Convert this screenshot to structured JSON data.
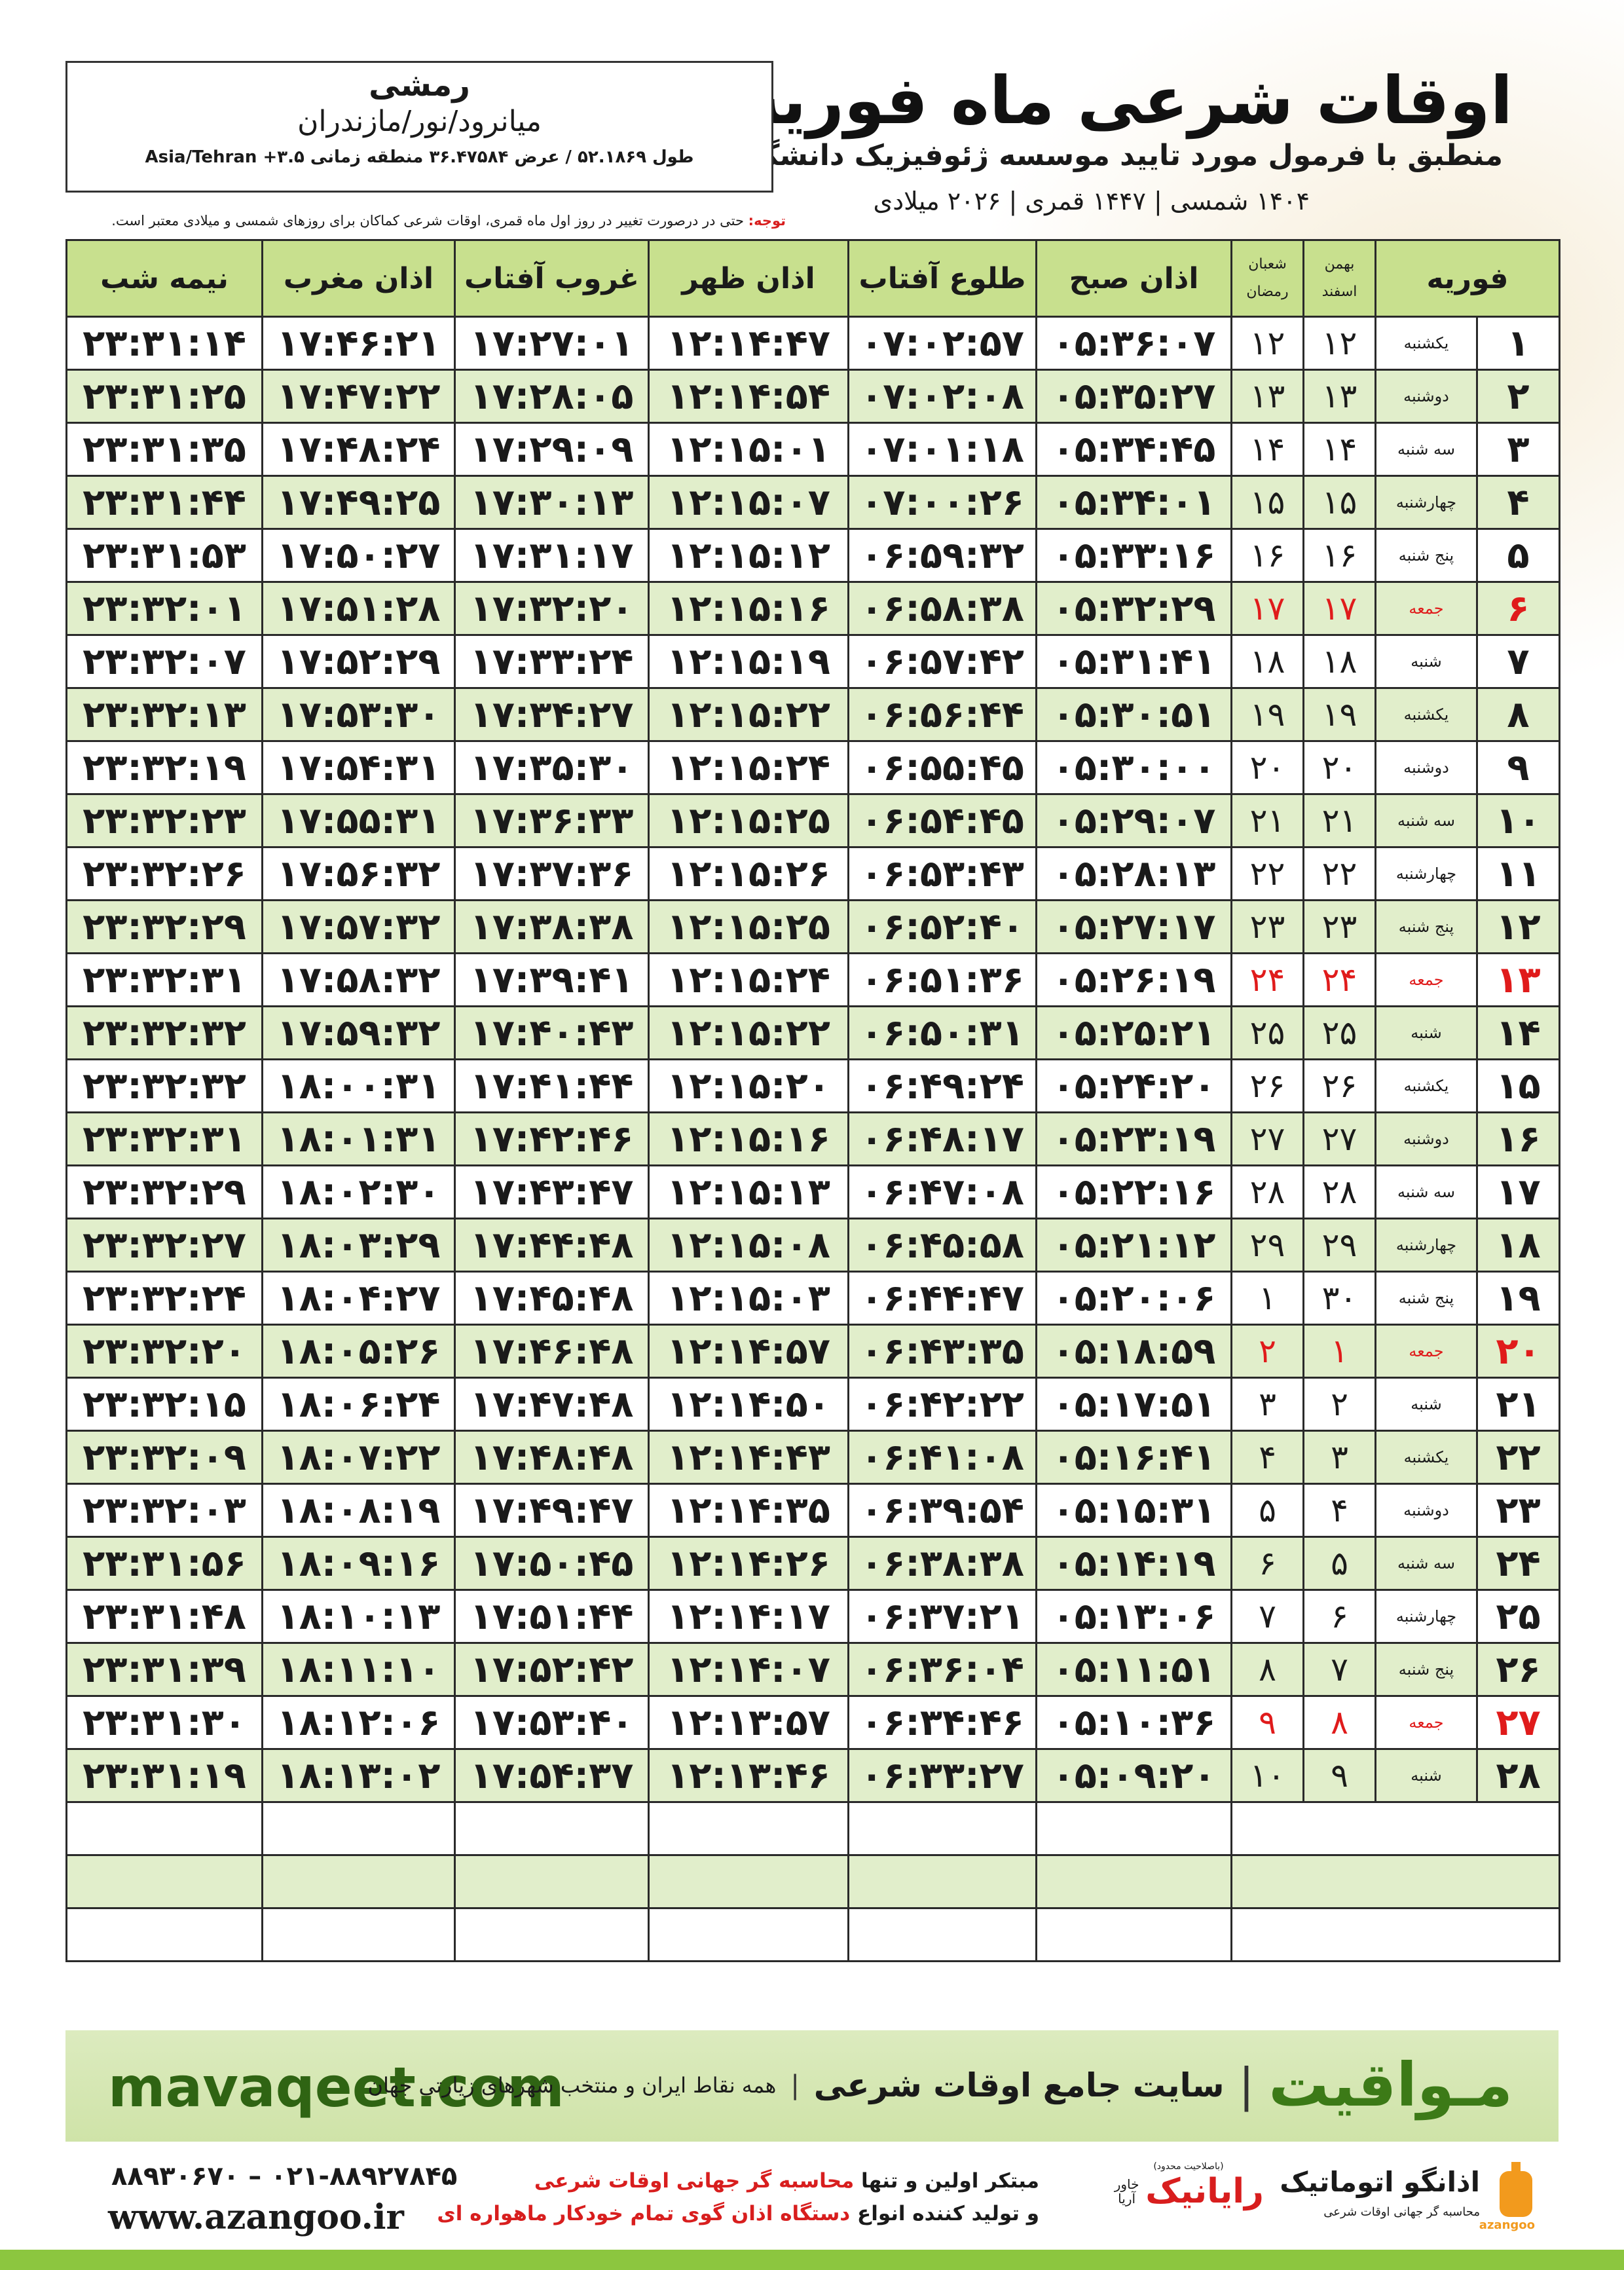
{
  "header": {
    "title": "اوقات شرعی ماه فوریه",
    "subtitle": "منطبق با فرمول مورد تایید موسسه ژئوفیزیک دانشگاه تهران",
    "dates": "۱۴۰۴ شمسی | ۱۴۴۷ قمری | ۲۰۲۶ میلادی"
  },
  "location": {
    "city": "رمشی",
    "region": "میانرود/نور/مازندران",
    "coords": "طول ۵۲.۱۸۶۹ / عرض ۳۶.۴۷۵۸۴ منطقه زمانی ۳.۵+ Asia/Tehran"
  },
  "note": {
    "label": "توجه:",
    "text": "حتی در درصورت تغییر در روز اول ماه قمری، اوقات شرعی کماکان برای روزهای شمسی و میلادی معتبر است."
  },
  "table": {
    "headers": {
      "month": "فوریه",
      "solar": [
        "بهمن",
        "اسفند"
      ],
      "lunar": [
        "شعبان",
        "رمضان"
      ],
      "fajr": "اذان صبح",
      "sunrise": "طلوع آفتاب",
      "dhuhr": "اذان ظهر",
      "sunset": "غروب آفتاب",
      "maghrib": "اذان مغرب",
      "midnight": "نیمه شب"
    },
    "rows": [
      {
        "day": "۱",
        "weekday": "یکشنبه",
        "solar": "۱۲",
        "lunar": "۱۲",
        "fajr": "۰۵:۳۶:۰۷",
        "sunrise": "۰۷:۰۲:۵۷",
        "dhuhr": "۱۲:۱۴:۴۷",
        "sunset": "۱۷:۲۷:۰۱",
        "maghrib": "۱۷:۴۶:۲۱",
        "midnight": "۲۳:۳۱:۱۴"
      },
      {
        "day": "۲",
        "weekday": "دوشنبه",
        "solar": "۱۳",
        "lunar": "۱۳",
        "fajr": "۰۵:۳۵:۲۷",
        "sunrise": "۰۷:۰۲:۰۸",
        "dhuhr": "۱۲:۱۴:۵۴",
        "sunset": "۱۷:۲۸:۰۵",
        "maghrib": "۱۷:۴۷:۲۲",
        "midnight": "۲۳:۳۱:۲۵"
      },
      {
        "day": "۳",
        "weekday": "سه شنبه",
        "solar": "۱۴",
        "lunar": "۱۴",
        "fajr": "۰۵:۳۴:۴۵",
        "sunrise": "۰۷:۰۱:۱۸",
        "dhuhr": "۱۲:۱۵:۰۱",
        "sunset": "۱۷:۲۹:۰۹",
        "maghrib": "۱۷:۴۸:۲۴",
        "midnight": "۲۳:۳۱:۳۵"
      },
      {
        "day": "۴",
        "weekday": "چهارشنبه",
        "solar": "۱۵",
        "lunar": "۱۵",
        "fajr": "۰۵:۳۴:۰۱",
        "sunrise": "۰۷:۰۰:۲۶",
        "dhuhr": "۱۲:۱۵:۰۷",
        "sunset": "۱۷:۳۰:۱۳",
        "maghrib": "۱۷:۴۹:۲۵",
        "midnight": "۲۳:۳۱:۴۴"
      },
      {
        "day": "۵",
        "weekday": "پنج شنبه",
        "solar": "۱۶",
        "lunar": "۱۶",
        "fajr": "۰۵:۳۳:۱۶",
        "sunrise": "۰۶:۵۹:۳۲",
        "dhuhr": "۱۲:۱۵:۱۲",
        "sunset": "۱۷:۳۱:۱۷",
        "maghrib": "۱۷:۵۰:۲۷",
        "midnight": "۲۳:۳۱:۵۳"
      },
      {
        "day": "۶",
        "weekday": "جمعه",
        "solar": "۱۷",
        "lunar": "۱۷",
        "fajr": "۰۵:۳۲:۲۹",
        "sunrise": "۰۶:۵۸:۳۸",
        "dhuhr": "۱۲:۱۵:۱۶",
        "sunset": "۱۷:۳۲:۲۰",
        "maghrib": "۱۷:۵۱:۲۸",
        "midnight": "۲۳:۳۲:۰۱",
        "holiday": true
      },
      {
        "day": "۷",
        "weekday": "شنبه",
        "solar": "۱۸",
        "lunar": "۱۸",
        "fajr": "۰۵:۳۱:۴۱",
        "sunrise": "۰۶:۵۷:۴۲",
        "dhuhr": "۱۲:۱۵:۱۹",
        "sunset": "۱۷:۳۳:۲۴",
        "maghrib": "۱۷:۵۲:۲۹",
        "midnight": "۲۳:۳۲:۰۷"
      },
      {
        "day": "۸",
        "weekday": "یکشنبه",
        "solar": "۱۹",
        "lunar": "۱۹",
        "fajr": "۰۵:۳۰:۵۱",
        "sunrise": "۰۶:۵۶:۴۴",
        "dhuhr": "۱۲:۱۵:۲۲",
        "sunset": "۱۷:۳۴:۲۷",
        "maghrib": "۱۷:۵۳:۳۰",
        "midnight": "۲۳:۳۲:۱۳"
      },
      {
        "day": "۹",
        "weekday": "دوشنبه",
        "solar": "۲۰",
        "lunar": "۲۰",
        "fajr": "۰۵:۳۰:۰۰",
        "sunrise": "۰۶:۵۵:۴۵",
        "dhuhr": "۱۲:۱۵:۲۴",
        "sunset": "۱۷:۳۵:۳۰",
        "maghrib": "۱۷:۵۴:۳۱",
        "midnight": "۲۳:۳۲:۱۹"
      },
      {
        "day": "۱۰",
        "weekday": "سه شنبه",
        "solar": "۲۱",
        "lunar": "۲۱",
        "fajr": "۰۵:۲۹:۰۷",
        "sunrise": "۰۶:۵۴:۴۵",
        "dhuhr": "۱۲:۱۵:۲۵",
        "sunset": "۱۷:۳۶:۳۳",
        "maghrib": "۱۷:۵۵:۳۱",
        "midnight": "۲۳:۳۲:۲۳"
      },
      {
        "day": "۱۱",
        "weekday": "چهارشنبه",
        "solar": "۲۲",
        "lunar": "۲۲",
        "fajr": "۰۵:۲۸:۱۳",
        "sunrise": "۰۶:۵۳:۴۳",
        "dhuhr": "۱۲:۱۵:۲۶",
        "sunset": "۱۷:۳۷:۳۶",
        "maghrib": "۱۷:۵۶:۳۲",
        "midnight": "۲۳:۳۲:۲۶"
      },
      {
        "day": "۱۲",
        "weekday": "پنج شنبه",
        "solar": "۲۳",
        "lunar": "۲۳",
        "fajr": "۰۵:۲۷:۱۷",
        "sunrise": "۰۶:۵۲:۴۰",
        "dhuhr": "۱۲:۱۵:۲۵",
        "sunset": "۱۷:۳۸:۳۸",
        "maghrib": "۱۷:۵۷:۳۲",
        "midnight": "۲۳:۳۲:۲۹"
      },
      {
        "day": "۱۳",
        "weekday": "جمعه",
        "solar": "۲۴",
        "lunar": "۲۴",
        "fajr": "۰۵:۲۶:۱۹",
        "sunrise": "۰۶:۵۱:۳۶",
        "dhuhr": "۱۲:۱۵:۲۴",
        "sunset": "۱۷:۳۹:۴۱",
        "maghrib": "۱۷:۵۸:۳۲",
        "midnight": "۲۳:۳۲:۳۱",
        "holiday": true
      },
      {
        "day": "۱۴",
        "weekday": "شنبه",
        "solar": "۲۵",
        "lunar": "۲۵",
        "fajr": "۰۵:۲۵:۲۱",
        "sunrise": "۰۶:۵۰:۳۱",
        "dhuhr": "۱۲:۱۵:۲۲",
        "sunset": "۱۷:۴۰:۴۳",
        "maghrib": "۱۷:۵۹:۳۲",
        "midnight": "۲۳:۳۲:۳۲"
      },
      {
        "day": "۱۵",
        "weekday": "یکشنبه",
        "solar": "۲۶",
        "lunar": "۲۶",
        "fajr": "۰۵:۲۴:۲۰",
        "sunrise": "۰۶:۴۹:۲۴",
        "dhuhr": "۱۲:۱۵:۲۰",
        "sunset": "۱۷:۴۱:۴۴",
        "maghrib": "۱۸:۰۰:۳۱",
        "midnight": "۲۳:۳۲:۳۲"
      },
      {
        "day": "۱۶",
        "weekday": "دوشنبه",
        "solar": "۲۷",
        "lunar": "۲۷",
        "fajr": "۰۵:۲۳:۱۹",
        "sunrise": "۰۶:۴۸:۱۷",
        "dhuhr": "۱۲:۱۵:۱۶",
        "sunset": "۱۷:۴۲:۴۶",
        "maghrib": "۱۸:۰۱:۳۱",
        "midnight": "۲۳:۳۲:۳۱"
      },
      {
        "day": "۱۷",
        "weekday": "سه شنبه",
        "solar": "۲۸",
        "lunar": "۲۸",
        "fajr": "۰۵:۲۲:۱۶",
        "sunrise": "۰۶:۴۷:۰۸",
        "dhuhr": "۱۲:۱۵:۱۳",
        "sunset": "۱۷:۴۳:۴۷",
        "maghrib": "۱۸:۰۲:۳۰",
        "midnight": "۲۳:۳۲:۲۹"
      },
      {
        "day": "۱۸",
        "weekday": "چهارشنبه",
        "solar": "۲۹",
        "lunar": "۲۹",
        "fajr": "۰۵:۲۱:۱۲",
        "sunrise": "۰۶:۴۵:۵۸",
        "dhuhr": "۱۲:۱۵:۰۸",
        "sunset": "۱۷:۴۴:۴۸",
        "maghrib": "۱۸:۰۳:۲۹",
        "midnight": "۲۳:۳۲:۲۷"
      },
      {
        "day": "۱۹",
        "weekday": "پنج شنبه",
        "solar": "۳۰",
        "lunar": "۱",
        "fajr": "۰۵:۲۰:۰۶",
        "sunrise": "۰۶:۴۴:۴۷",
        "dhuhr": "۱۲:۱۵:۰۳",
        "sunset": "۱۷:۴۵:۴۸",
        "maghrib": "۱۸:۰۴:۲۷",
        "midnight": "۲۳:۳۲:۲۴"
      },
      {
        "day": "۲۰",
        "weekday": "جمعه",
        "solar": "۱",
        "lunar": "۲",
        "fajr": "۰۵:۱۸:۵۹",
        "sunrise": "۰۶:۴۳:۳۵",
        "dhuhr": "۱۲:۱۴:۵۷",
        "sunset": "۱۷:۴۶:۴۸",
        "maghrib": "۱۸:۰۵:۲۶",
        "midnight": "۲۳:۳۲:۲۰",
        "holiday": true
      },
      {
        "day": "۲۱",
        "weekday": "شنبه",
        "solar": "۲",
        "lunar": "۳",
        "fajr": "۰۵:۱۷:۵۱",
        "sunrise": "۰۶:۴۲:۲۲",
        "dhuhr": "۱۲:۱۴:۵۰",
        "sunset": "۱۷:۴۷:۴۸",
        "maghrib": "۱۸:۰۶:۲۴",
        "midnight": "۲۳:۳۲:۱۵"
      },
      {
        "day": "۲۲",
        "weekday": "یکشنبه",
        "solar": "۳",
        "lunar": "۴",
        "fajr": "۰۵:۱۶:۴۱",
        "sunrise": "۰۶:۴۱:۰۸",
        "dhuhr": "۱۲:۱۴:۴۳",
        "sunset": "۱۷:۴۸:۴۸",
        "maghrib": "۱۸:۰۷:۲۲",
        "midnight": "۲۳:۳۲:۰۹"
      },
      {
        "day": "۲۳",
        "weekday": "دوشنبه",
        "solar": "۴",
        "lunar": "۵",
        "fajr": "۰۵:۱۵:۳۱",
        "sunrise": "۰۶:۳۹:۵۴",
        "dhuhr": "۱۲:۱۴:۳۵",
        "sunset": "۱۷:۴۹:۴۷",
        "maghrib": "۱۸:۰۸:۱۹",
        "midnight": "۲۳:۳۲:۰۳"
      },
      {
        "day": "۲۴",
        "weekday": "سه شنبه",
        "solar": "۵",
        "lunar": "۶",
        "fajr": "۰۵:۱۴:۱۹",
        "sunrise": "۰۶:۳۸:۳۸",
        "dhuhr": "۱۲:۱۴:۲۶",
        "sunset": "۱۷:۵۰:۴۵",
        "maghrib": "۱۸:۰۹:۱۶",
        "midnight": "۲۳:۳۱:۵۶"
      },
      {
        "day": "۲۵",
        "weekday": "چهارشنبه",
        "solar": "۶",
        "lunar": "۷",
        "fajr": "۰۵:۱۳:۰۶",
        "sunrise": "۰۶:۳۷:۲۱",
        "dhuhr": "۱۲:۱۴:۱۷",
        "sunset": "۱۷:۵۱:۴۴",
        "maghrib": "۱۸:۱۰:۱۳",
        "midnight": "۲۳:۳۱:۴۸"
      },
      {
        "day": "۲۶",
        "weekday": "پنج شنبه",
        "solar": "۷",
        "lunar": "۸",
        "fajr": "۰۵:۱۱:۵۱",
        "sunrise": "۰۶:۳۶:۰۴",
        "dhuhr": "۱۲:۱۴:۰۷",
        "sunset": "۱۷:۵۲:۴۲",
        "maghrib": "۱۸:۱۱:۱۰",
        "midnight": "۲۳:۳۱:۳۹"
      },
      {
        "day": "۲۷",
        "weekday": "جمعه",
        "solar": "۸",
        "lunar": "۹",
        "fajr": "۰۵:۱۰:۳۶",
        "sunrise": "۰۶:۳۴:۴۶",
        "dhuhr": "۱۲:۱۳:۵۷",
        "sunset": "۱۷:۵۳:۴۰",
        "maghrib": "۱۸:۱۲:۰۶",
        "midnight": "۲۳:۳۱:۳۰",
        "holiday": true
      },
      {
        "day": "۲۸",
        "weekday": "شنبه",
        "solar": "۹",
        "lunar": "۱۰",
        "fajr": "۰۵:۰۹:۲۰",
        "sunrise": "۰۶:۳۳:۲۷",
        "dhuhr": "۱۲:۱۳:۴۶",
        "sunset": "۱۷:۵۴:۳۷",
        "maghrib": "۱۸:۱۳:۰۲",
        "midnight": "۲۳:۳۱:۱۹"
      }
    ]
  },
  "footer": {
    "site": "mavaqeet.com",
    "brand": "مـواقیت",
    "tagline": "سایت جامع اوقات شرعی",
    "coverage": "همه نقاط ایران و منتخب شهرهای زیارتی جهان"
  },
  "contact": {
    "phones": "۰۲۱-۸۸۹۲۷۸۴۵ – ۸۸۹۳۰۶۷۰",
    "web": "www.azangoo.ir",
    "line1": "مبتکر اولین و تنها",
    "line1_red": "محاسبه گر جهانی اوقات شرعی",
    "line2": "و تولید کننده انواع",
    "line2_red": "دستگاه اذان گوی تمام خودکار ماهواره ای",
    "logo1_note": "(باصلاحیت محدود)",
    "logo1": "رایانیک",
    "logo1_sub": "خاور آریا",
    "logo2": "اذانگو اتوماتیک",
    "logo2_sub": "محاسبه گر جهانی اوقات شرعی",
    "logo2_en": "azangoo"
  }
}
